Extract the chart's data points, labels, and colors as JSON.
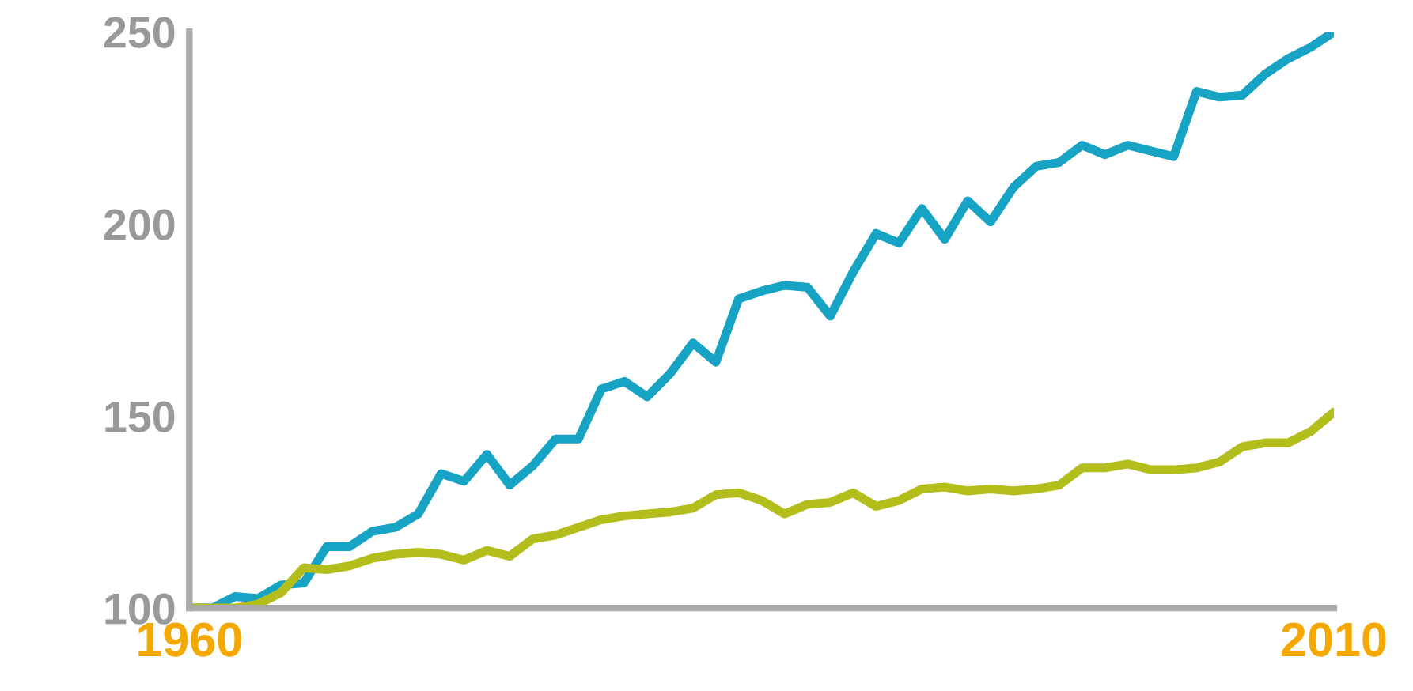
{
  "chart_data": {
    "type": "line",
    "x": [
      1960,
      1961,
      1962,
      1963,
      1964,
      1965,
      1966,
      1967,
      1968,
      1969,
      1970,
      1971,
      1972,
      1973,
      1974,
      1975,
      1976,
      1977,
      1978,
      1979,
      1980,
      1981,
      1982,
      1983,
      1984,
      1985,
      1986,
      1987,
      1988,
      1989,
      1990,
      1991,
      1992,
      1993,
      1994,
      1995,
      1996,
      1997,
      1998,
      1999,
      2000,
      2001,
      2002,
      2003,
      2004,
      2005,
      2006,
      2007,
      2008,
      2009,
      2010
    ],
    "series": [
      {
        "color": "#17a3c3",
        "values": [
          100,
          100,
          103,
          102.5,
          106,
          106.5,
          116,
          116,
          120,
          121,
          124.5,
          135,
          133,
          140,
          132,
          137,
          144,
          144,
          157,
          159,
          155,
          161,
          169,
          164,
          180.5,
          182.5,
          184,
          183.5,
          176,
          187.5,
          197.5,
          195,
          204,
          196,
          206,
          200.5,
          209.5,
          215,
          216,
          220.5,
          218,
          220.5,
          219,
          217.5,
          234.5,
          233,
          233.5,
          239,
          243,
          246,
          250
        ]
      },
      {
        "color": "#b3be1c",
        "values": [
          100,
          100,
          100,
          101,
          104,
          110.5,
          110,
          111,
          113,
          114,
          114.5,
          114,
          112.5,
          115,
          113.5,
          118,
          119,
          121,
          123,
          124,
          124.5,
          125,
          126,
          129.5,
          130,
          128,
          124.5,
          127,
          127.5,
          130,
          126.5,
          128,
          131,
          131.5,
          130.5,
          131,
          130.5,
          131,
          132,
          136.5,
          136.5,
          137.5,
          136,
          136,
          136.5,
          138,
          142,
          143,
          143,
          146,
          151
        ]
      }
    ],
    "xlim": [
      1960,
      2010
    ],
    "xticks": [
      1960,
      2010
    ],
    "ylim": [
      100,
      250
    ],
    "yticks": [
      100,
      150,
      200,
      250
    ],
    "grid": false,
    "marker": "none",
    "line_style": "solid"
  }
}
